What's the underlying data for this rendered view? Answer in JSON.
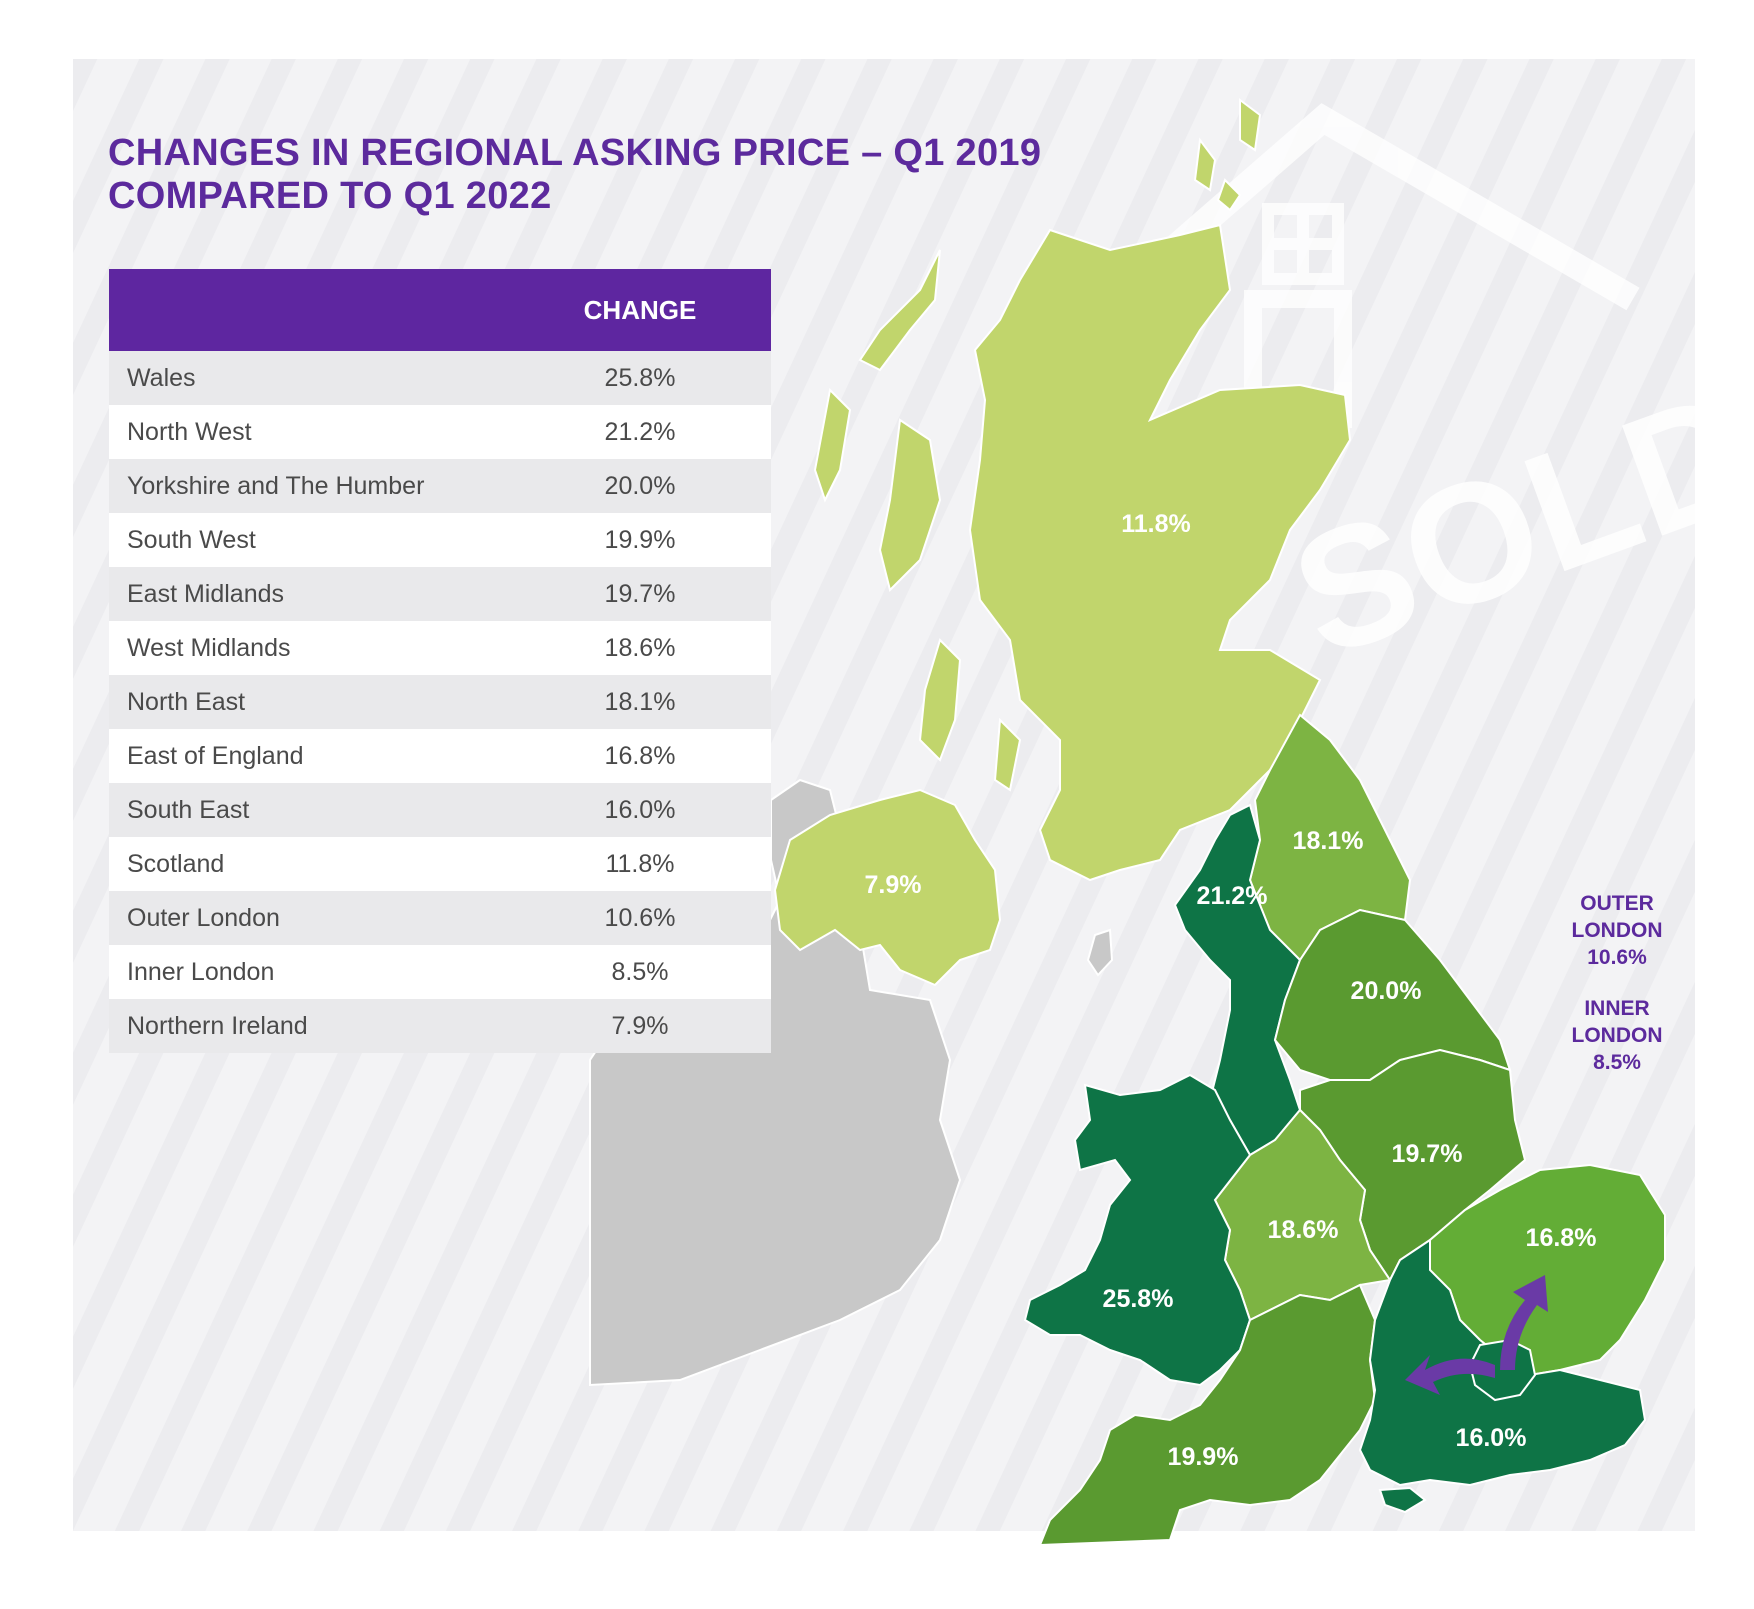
{
  "title_line1": "CHANGES IN REGIONAL ASKING PRICE – Q1 2019",
  "title_line2": "COMPARED TO Q1 2022",
  "table": {
    "region_header": "",
    "change_header": "CHANGE",
    "rows": [
      {
        "region": "Wales",
        "change": "25.8%"
      },
      {
        "region": "North West",
        "change": "21.2%"
      },
      {
        "region": "Yorkshire and The Humber",
        "change": "20.0%"
      },
      {
        "region": "South West",
        "change": "19.9%"
      },
      {
        "region": "East Midlands",
        "change": "19.7%"
      },
      {
        "region": "West Midlands",
        "change": "18.6%"
      },
      {
        "region": "North East",
        "change": "18.1%"
      },
      {
        "region": "East of England",
        "change": "16.8%"
      },
      {
        "region": "South East",
        "change": "16.0%"
      },
      {
        "region": "Scotland",
        "change": "11.8%"
      },
      {
        "region": "Outer London",
        "change": "10.6%"
      },
      {
        "region": "Inner London",
        "change": "8.5%"
      },
      {
        "region": "Northern Ireland",
        "change": "7.9%"
      }
    ]
  },
  "map": {
    "labels": {
      "scotland": "11.8%",
      "northern_ireland": "7.9%",
      "north_east": "18.1%",
      "north_west": "21.2%",
      "yorkshire": "20.0%",
      "east_midlands": "19.7%",
      "west_midlands": "18.6%",
      "east_of_england": "16.8%",
      "wales": "25.8%",
      "south_west": "19.9%",
      "south_east": "16.0%"
    },
    "outer_london": {
      "line1": "OUTER",
      "line2": "LONDON",
      "value": "10.6%"
    },
    "inner_london": {
      "line1": "INNER",
      "line2": "LONDON",
      "value": "8.5%"
    },
    "watermark": "SOLD"
  },
  "colors": {
    "title": "#5c2a9d",
    "header": "#5e26a0",
    "band_lightest": "#c1d56c",
    "band_light": "#7db443",
    "band_mid": "#5a9a30",
    "band_bright": "#63ad36",
    "band_dark": "#0e7446",
    "ireland": "#c8c8c8",
    "arrow": "#6a3aa6"
  }
}
